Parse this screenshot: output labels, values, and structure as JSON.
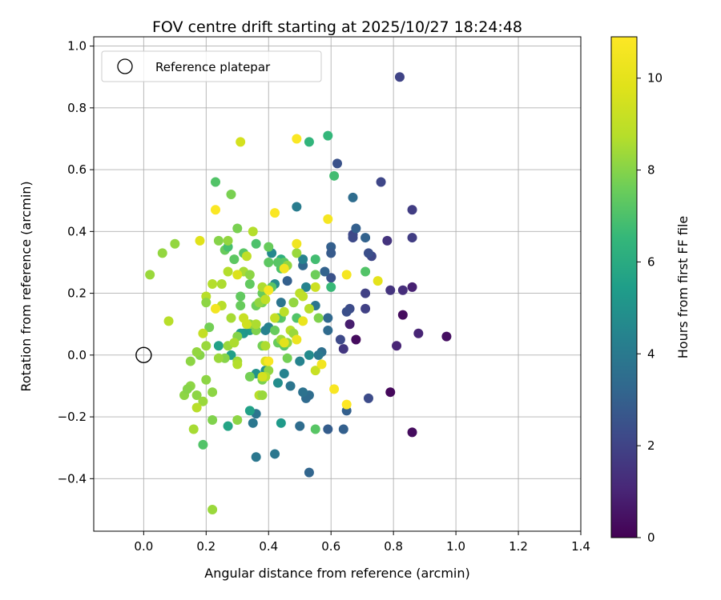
{
  "chart_data": {
    "type": "scatter",
    "title": "FOV centre drift starting at 2025/10/27 18:24:48",
    "xlabel": "Angular distance from reference (arcmin)",
    "ylabel": "Rotation from reference (arcmin)",
    "xlim": [
      -0.16,
      1.4
    ],
    "ylim": [
      -0.57,
      1.03
    ],
    "xticks": [
      0.0,
      0.2,
      0.4,
      0.6,
      0.8,
      1.0,
      1.2,
      1.4
    ],
    "xtick_labels": [
      "0.0",
      "0.2",
      "0.4",
      "0.6",
      "0.8",
      "1.0",
      "1.2",
      "1.4"
    ],
    "yticks": [
      -0.4,
      -0.2,
      0.0,
      0.2,
      0.4,
      0.6,
      0.8,
      1.0
    ],
    "ytick_labels": [
      "−0.4",
      "−0.2",
      "0.0",
      "0.2",
      "0.4",
      "0.6",
      "0.8",
      "1.0"
    ],
    "grid": true,
    "legend": {
      "location": "top-left",
      "label": "Reference platepar"
    },
    "reference_point": {
      "x": 0.0,
      "y": 0.0
    },
    "colorbar": {
      "label": "Hours from first FF file",
      "range": [
        0,
        10.9
      ],
      "ticks": [
        0,
        2,
        4,
        6,
        8,
        10
      ],
      "tick_labels": [
        "0",
        "2",
        "4",
        "6",
        "8",
        "10"
      ],
      "colormap": "viridis"
    },
    "points": [
      {
        "x": 0.82,
        "y": 0.9,
        "h": 2.0
      },
      {
        "x": 0.88,
        "y": 0.07,
        "h": 1.0
      },
      {
        "x": 0.97,
        "y": 0.06,
        "h": 0.4
      },
      {
        "x": 0.86,
        "y": -0.25,
        "h": 0.3
      },
      {
        "x": 0.79,
        "y": -0.12,
        "h": 0.2
      },
      {
        "x": 0.83,
        "y": 0.13,
        "h": 0.3
      },
      {
        "x": 0.86,
        "y": 0.22,
        "h": 0.9
      },
      {
        "x": 0.81,
        "y": 0.03,
        "h": 1.0
      },
      {
        "x": 0.68,
        "y": 0.05,
        "h": 0.3
      },
      {
        "x": 0.66,
        "y": 0.1,
        "h": 0.8
      },
      {
        "x": 0.83,
        "y": 0.21,
        "h": 1.3
      },
      {
        "x": 0.79,
        "y": 0.21,
        "h": 1.5
      },
      {
        "x": 0.86,
        "y": 0.47,
        "h": 1.8
      },
      {
        "x": 0.86,
        "y": 0.38,
        "h": 1.8
      },
      {
        "x": 0.78,
        "y": 0.37,
        "h": 1.5
      },
      {
        "x": 0.76,
        "y": 0.56,
        "h": 2.1
      },
      {
        "x": 0.73,
        "y": 0.32,
        "h": 2.1
      },
      {
        "x": 0.72,
        "y": 0.33,
        "h": 2.4
      },
      {
        "x": 0.71,
        "y": 0.2,
        "h": 1.9
      },
      {
        "x": 0.71,
        "y": 0.15,
        "h": 1.9
      },
      {
        "x": 0.64,
        "y": 0.02,
        "h": 1.6
      },
      {
        "x": 0.63,
        "y": 0.05,
        "h": 2.2
      },
      {
        "x": 0.66,
        "y": 0.15,
        "h": 2.3
      },
      {
        "x": 0.65,
        "y": 0.14,
        "h": 2.4
      },
      {
        "x": 0.67,
        "y": 0.39,
        "h": 2.1
      },
      {
        "x": 0.67,
        "y": 0.38,
        "h": 2.2
      },
      {
        "x": 0.68,
        "y": 0.41,
        "h": 3.0
      },
      {
        "x": 0.71,
        "y": 0.38,
        "h": 3.1
      },
      {
        "x": 0.62,
        "y": 0.62,
        "h": 2.5
      },
      {
        "x": 0.67,
        "y": 0.51,
        "h": 3.5
      },
      {
        "x": 0.6,
        "y": 0.35,
        "h": 3.0
      },
      {
        "x": 0.6,
        "y": 0.33,
        "h": 2.8
      },
      {
        "x": 0.6,
        "y": 0.25,
        "h": 2.5
      },
      {
        "x": 0.58,
        "y": 0.27,
        "h": 3.1
      },
      {
        "x": 0.59,
        "y": 0.12,
        "h": 3.3
      },
      {
        "x": 0.59,
        "y": 0.08,
        "h": 3.4
      },
      {
        "x": 0.55,
        "y": 0.16,
        "h": 3.8
      },
      {
        "x": 0.57,
        "y": 0.01,
        "h": 3.6
      },
      {
        "x": 0.56,
        "y": 0.0,
        "h": 3.9
      },
      {
        "x": 0.53,
        "y": 0.0,
        "h": 4.7
      },
      {
        "x": 0.65,
        "y": -0.18,
        "h": 3.0
      },
      {
        "x": 0.64,
        "y": -0.24,
        "h": 3.0
      },
      {
        "x": 0.59,
        "y": -0.24,
        "h": 2.9
      },
      {
        "x": 0.72,
        "y": -0.14,
        "h": 2.3
      },
      {
        "x": 0.53,
        "y": -0.13,
        "h": 3.5
      },
      {
        "x": 0.52,
        "y": -0.14,
        "h": 3.4
      },
      {
        "x": 0.51,
        "y": -0.12,
        "h": 3.7
      },
      {
        "x": 0.5,
        "y": -0.23,
        "h": 3.5
      },
      {
        "x": 0.53,
        "y": -0.38,
        "h": 3.2
      },
      {
        "x": 0.42,
        "y": -0.32,
        "h": 3.9
      },
      {
        "x": 0.36,
        "y": -0.33,
        "h": 3.9
      },
      {
        "x": 0.35,
        "y": -0.22,
        "h": 3.9
      },
      {
        "x": 0.36,
        "y": -0.19,
        "h": 3.8
      },
      {
        "x": 0.47,
        "y": -0.1,
        "h": 3.8
      },
      {
        "x": 0.45,
        "y": -0.06,
        "h": 4.4
      },
      {
        "x": 0.5,
        "y": -0.02,
        "h": 4.4
      },
      {
        "x": 0.49,
        "y": 0.48,
        "h": 4.1
      },
      {
        "x": 0.46,
        "y": 0.24,
        "h": 3.0
      },
      {
        "x": 0.51,
        "y": 0.29,
        "h": 3.3
      },
      {
        "x": 0.52,
        "y": 0.22,
        "h": 4.4
      },
      {
        "x": 0.51,
        "y": 0.31,
        "h": 4.4
      },
      {
        "x": 0.41,
        "y": 0.33,
        "h": 4.6
      },
      {
        "x": 0.42,
        "y": 0.23,
        "h": 4.7
      },
      {
        "x": 0.44,
        "y": 0.17,
        "h": 3.8
      },
      {
        "x": 0.4,
        "y": 0.09,
        "h": 4.3
      },
      {
        "x": 0.39,
        "y": 0.08,
        "h": 4.3
      },
      {
        "x": 0.34,
        "y": 0.08,
        "h": 5.3
      },
      {
        "x": 0.32,
        "y": 0.07,
        "h": 5.1
      },
      {
        "x": 0.31,
        "y": 0.07,
        "h": 5.3
      },
      {
        "x": 0.36,
        "y": -0.06,
        "h": 5.0
      },
      {
        "x": 0.39,
        "y": -0.05,
        "h": 4.9
      },
      {
        "x": 0.43,
        "y": -0.09,
        "h": 4.8
      },
      {
        "x": 0.44,
        "y": -0.22,
        "h": 5.3
      },
      {
        "x": 0.28,
        "y": 0.0,
        "h": 5.5
      },
      {
        "x": 0.24,
        "y": 0.03,
        "h": 5.6
      },
      {
        "x": 0.27,
        "y": -0.23,
        "h": 5.7
      },
      {
        "x": 0.34,
        "y": -0.18,
        "h": 5.6
      },
      {
        "x": 0.53,
        "y": 0.69,
        "h": 6.4
      },
      {
        "x": 0.59,
        "y": 0.71,
        "h": 6.5
      },
      {
        "x": 0.61,
        "y": 0.58,
        "h": 6.8
      },
      {
        "x": 0.55,
        "y": 0.31,
        "h": 6.8
      },
      {
        "x": 0.6,
        "y": 0.22,
        "h": 6.6
      },
      {
        "x": 0.71,
        "y": 0.27,
        "h": 7.1
      },
      {
        "x": 0.44,
        "y": 0.31,
        "h": 6.2
      },
      {
        "x": 0.23,
        "y": 0.56,
        "h": 7.1
      },
      {
        "x": 0.36,
        "y": 0.36,
        "h": 7.0
      },
      {
        "x": 0.32,
        "y": 0.33,
        "h": 7.2
      },
      {
        "x": 0.29,
        "y": 0.31,
        "h": 7.3
      },
      {
        "x": 0.26,
        "y": 0.34,
        "h": 7.5
      },
      {
        "x": 0.27,
        "y": 0.35,
        "h": 6.9
      },
      {
        "x": 0.4,
        "y": 0.3,
        "h": 7.3
      },
      {
        "x": 0.4,
        "y": 0.35,
        "h": 7.5
      },
      {
        "x": 0.45,
        "y": 0.3,
        "h": 7.3
      },
      {
        "x": 0.44,
        "y": 0.28,
        "h": 7.0
      },
      {
        "x": 0.43,
        "y": 0.3,
        "h": 7.2
      },
      {
        "x": 0.41,
        "y": 0.22,
        "h": 7.2
      },
      {
        "x": 0.34,
        "y": 0.23,
        "h": 7.4
      },
      {
        "x": 0.31,
        "y": 0.19,
        "h": 7.4
      },
      {
        "x": 0.31,
        "y": 0.16,
        "h": 7.5
      },
      {
        "x": 0.36,
        "y": 0.16,
        "h": 7.6
      },
      {
        "x": 0.38,
        "y": 0.17,
        "h": 7.7
      },
      {
        "x": 0.38,
        "y": 0.2,
        "h": 7.5
      },
      {
        "x": 0.49,
        "y": 0.12,
        "h": 7.1
      },
      {
        "x": 0.55,
        "y": 0.26,
        "h": 7.6
      },
      {
        "x": 0.56,
        "y": 0.12,
        "h": 7.9
      },
      {
        "x": 0.48,
        "y": 0.17,
        "h": 7.1
      },
      {
        "x": 0.44,
        "y": 0.12,
        "h": 7.3
      },
      {
        "x": 0.43,
        "y": 0.12,
        "h": 7.1
      },
      {
        "x": 0.43,
        "y": 0.04,
        "h": 7.5
      },
      {
        "x": 0.45,
        "y": 0.03,
        "h": 7.2
      },
      {
        "x": 0.42,
        "y": 0.08,
        "h": 7.5
      },
      {
        "x": 0.38,
        "y": 0.03,
        "h": 7.7
      },
      {
        "x": 0.36,
        "y": 0.08,
        "h": 7.9
      },
      {
        "x": 0.34,
        "y": 0.1,
        "h": 8.2
      },
      {
        "x": 0.34,
        "y": -0.07,
        "h": 7.7
      },
      {
        "x": 0.38,
        "y": -0.08,
        "h": 7.8
      },
      {
        "x": 0.46,
        "y": -0.01,
        "h": 7.7
      },
      {
        "x": 0.46,
        "y": 0.04,
        "h": 8.1
      },
      {
        "x": 0.46,
        "y": 0.29,
        "h": 8.2
      },
      {
        "x": 0.27,
        "y": 0.37,
        "h": 8.2
      },
      {
        "x": 0.24,
        "y": 0.37,
        "h": 8.0
      },
      {
        "x": 0.3,
        "y": 0.41,
        "h": 7.8
      },
      {
        "x": 0.28,
        "y": 0.52,
        "h": 7.8
      },
      {
        "x": 0.35,
        "y": 0.4,
        "h": 8.7
      },
      {
        "x": 0.37,
        "y": 0.17,
        "h": 8.2
      },
      {
        "x": 0.36,
        "y": 0.1,
        "h": 8.6
      },
      {
        "x": 0.27,
        "y": 0.27,
        "h": 8.7
      },
      {
        "x": 0.32,
        "y": 0.27,
        "h": 8.5
      },
      {
        "x": 0.34,
        "y": 0.26,
        "h": 8.1
      },
      {
        "x": 0.22,
        "y": 0.23,
        "h": 8.7
      },
      {
        "x": 0.25,
        "y": 0.23,
        "h": 8.6
      },
      {
        "x": 0.2,
        "y": 0.19,
        "h": 8.8
      },
      {
        "x": 0.21,
        "y": 0.09,
        "h": 7.7
      },
      {
        "x": 0.25,
        "y": 0.16,
        "h": 8.8
      },
      {
        "x": 0.28,
        "y": 0.12,
        "h": 8.5
      },
      {
        "x": 0.3,
        "y": 0.06,
        "h": 8.0
      },
      {
        "x": 0.27,
        "y": 0.03,
        "h": 8.3
      },
      {
        "x": 0.29,
        "y": 0.04,
        "h": 8.6
      },
      {
        "x": 0.26,
        "y": -0.01,
        "h": 8.0
      },
      {
        "x": 0.24,
        "y": -0.01,
        "h": 8.3
      },
      {
        "x": 0.3,
        "y": -0.02,
        "h": 8.4
      },
      {
        "x": 0.3,
        "y": -0.03,
        "h": 8.7
      },
      {
        "x": 0.2,
        "y": 0.03,
        "h": 8.3
      },
      {
        "x": 0.18,
        "y": 0.0,
        "h": 8.0
      },
      {
        "x": 0.17,
        "y": 0.01,
        "h": 8.2
      },
      {
        "x": 0.15,
        "y": -0.02,
        "h": 8.1
      },
      {
        "x": 0.15,
        "y": -0.1,
        "h": 8.1
      },
      {
        "x": 0.13,
        "y": -0.13,
        "h": 8.1
      },
      {
        "x": 0.14,
        "y": -0.11,
        "h": 8.0
      },
      {
        "x": 0.17,
        "y": -0.13,
        "h": 8.1
      },
      {
        "x": 0.2,
        "y": -0.08,
        "h": 8.1
      },
      {
        "x": 0.22,
        "y": -0.12,
        "h": 8.1
      },
      {
        "x": 0.19,
        "y": -0.15,
        "h": 8.3
      },
      {
        "x": 0.17,
        "y": -0.17,
        "h": 8.8
      },
      {
        "x": 0.16,
        "y": -0.24,
        "h": 8.5
      },
      {
        "x": 0.22,
        "y": -0.21,
        "h": 7.9
      },
      {
        "x": 0.19,
        "y": -0.29,
        "h": 7.1
      },
      {
        "x": 0.22,
        "y": -0.5,
        "h": 8.3
      },
      {
        "x": 0.3,
        "y": -0.21,
        "h": 8.1
      },
      {
        "x": 0.37,
        "y": -0.13,
        "h": 8.8
      },
      {
        "x": 0.38,
        "y": -0.13,
        "h": 8.3
      },
      {
        "x": 0.4,
        "y": -0.05,
        "h": 8.2
      },
      {
        "x": 0.39,
        "y": -0.07,
        "h": 8.7
      },
      {
        "x": 0.55,
        "y": -0.24,
        "h": 7.2
      },
      {
        "x": 0.55,
        "y": -0.05,
        "h": 9.2
      },
      {
        "x": 0.39,
        "y": 0.03,
        "h": 8.6
      },
      {
        "x": 0.44,
        "y": 0.05,
        "h": 8.4
      },
      {
        "x": 0.45,
        "y": 0.14,
        "h": 8.9
      },
      {
        "x": 0.47,
        "y": 0.08,
        "h": 8.8
      },
      {
        "x": 0.48,
        "y": 0.07,
        "h": 8.3
      },
      {
        "x": 0.38,
        "y": 0.22,
        "h": 8.6
      },
      {
        "x": 0.39,
        "y": 0.18,
        "h": 9.0
      },
      {
        "x": 0.42,
        "y": 0.12,
        "h": 9.1
      },
      {
        "x": 0.48,
        "y": 0.17,
        "h": 8.2
      },
      {
        "x": 0.5,
        "y": 0.2,
        "h": 8.9
      },
      {
        "x": 0.51,
        "y": 0.19,
        "h": 9.0
      },
      {
        "x": 0.53,
        "y": 0.15,
        "h": 8.8
      },
      {
        "x": 0.55,
        "y": 0.22,
        "h": 9.3
      },
      {
        "x": 0.49,
        "y": 0.33,
        "h": 8.3
      },
      {
        "x": 0.31,
        "y": 0.69,
        "h": 9.5
      },
      {
        "x": 0.06,
        "y": 0.33,
        "h": 8.2
      },
      {
        "x": 0.1,
        "y": 0.36,
        "h": 8.2
      },
      {
        "x": 0.02,
        "y": 0.26,
        "h": 8.3
      },
      {
        "x": 0.08,
        "y": 0.11,
        "h": 8.8
      },
      {
        "x": 0.2,
        "y": 0.17,
        "h": 8.1
      },
      {
        "x": 0.19,
        "y": 0.07,
        "h": 9.1
      },
      {
        "x": 0.18,
        "y": 0.37,
        "h": 9.8
      },
      {
        "x": 0.3,
        "y": 0.26,
        "h": 9.7
      },
      {
        "x": 0.33,
        "y": 0.32,
        "h": 9.0
      },
      {
        "x": 0.32,
        "y": 0.12,
        "h": 9.2
      },
      {
        "x": 0.33,
        "y": 0.1,
        "h": 9.4
      },
      {
        "x": 0.39,
        "y": -0.02,
        "h": 9.7
      },
      {
        "x": 0.38,
        "y": -0.07,
        "h": 9.5
      },
      {
        "x": 0.45,
        "y": 0.04,
        "h": 9.9
      },
      {
        "x": 0.23,
        "y": 0.15,
        "h": 10.5
      },
      {
        "x": 0.23,
        "y": 0.47,
        "h": 10.8
      },
      {
        "x": 0.42,
        "y": 0.46,
        "h": 10.8
      },
      {
        "x": 0.49,
        "y": 0.7,
        "h": 10.8
      },
      {
        "x": 0.59,
        "y": 0.44,
        "h": 10.6
      },
      {
        "x": 0.49,
        "y": 0.36,
        "h": 10.4
      },
      {
        "x": 0.45,
        "y": 0.28,
        "h": 10.5
      },
      {
        "x": 0.4,
        "y": 0.21,
        "h": 10.6
      },
      {
        "x": 0.49,
        "y": 0.05,
        "h": 10.3
      },
      {
        "x": 0.51,
        "y": 0.11,
        "h": 10.2
      },
      {
        "x": 0.57,
        "y": -0.03,
        "h": 10.5
      },
      {
        "x": 0.65,
        "y": 0.26,
        "h": 10.6
      },
      {
        "x": 0.75,
        "y": 0.24,
        "h": 10.0
      },
      {
        "x": 0.61,
        "y": -0.11,
        "h": 10.7
      },
      {
        "x": 0.65,
        "y": -0.16,
        "h": 10.9
      },
      {
        "x": 0.4,
        "y": -0.02,
        "h": 10.7
      }
    ]
  }
}
